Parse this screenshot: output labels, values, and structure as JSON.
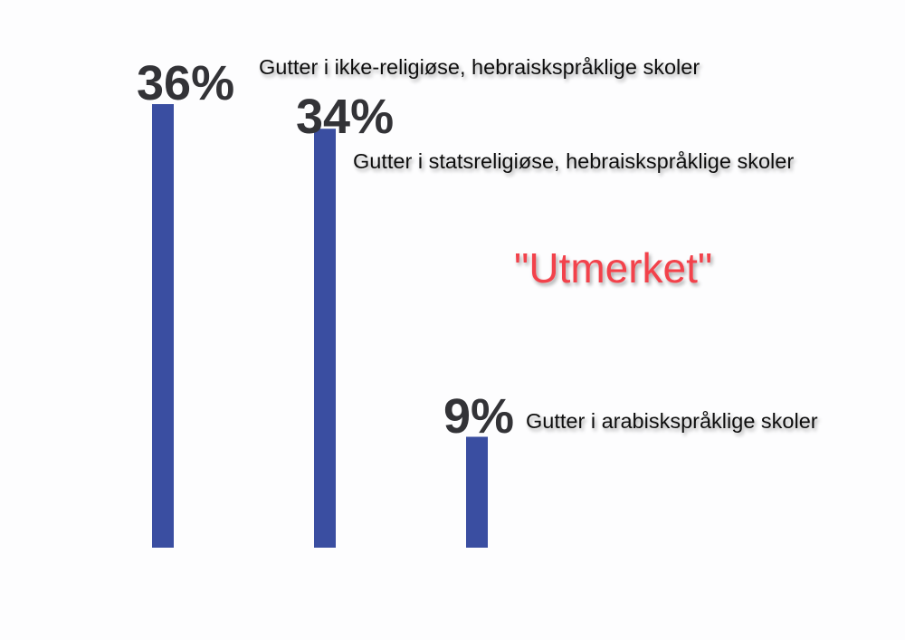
{
  "chart_data": {
    "type": "bar",
    "categories": [
      "Gutter i ikke-religiøse, hebraiskspråklige skoler",
      "Gutter i statsreligiøse, hebraiskspråklige skoler",
      "Gutter i arabiskspråklige skoler"
    ],
    "values": [
      36,
      34,
      9
    ],
    "data_labels": [
      "36%",
      "34%",
      "9%"
    ],
    "annotation": "\"Utmerket\"",
    "title": "",
    "xlabel": "",
    "ylabel": "",
    "ylim": [
      0,
      36
    ],
    "grid": false,
    "colors": {
      "bar": "#3a4ea1",
      "annotation": "#f2434b",
      "data_label": "#333337",
      "background": "#fdfdfe"
    }
  }
}
